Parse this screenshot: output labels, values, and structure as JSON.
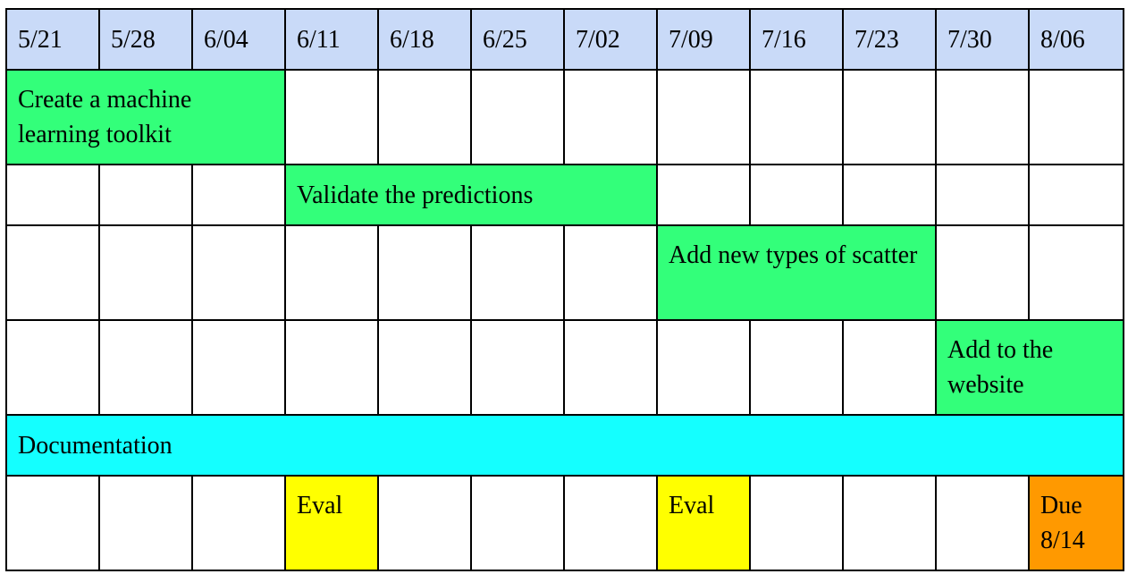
{
  "colors": {
    "header": "#c9daf8",
    "task": "#33ff7a",
    "documentation": "#14ffff",
    "eval": "#ffff00",
    "due": "#ff9900"
  },
  "weeks": [
    "5/21",
    "5/28",
    "6/04",
    "6/11",
    "6/18",
    "6/25",
    "7/02",
    "7/09",
    "7/16",
    "7/23",
    "7/30",
    "8/06"
  ],
  "tasks": [
    {
      "label": "Create a machine learning toolkit",
      "start_week": "5/21",
      "end_week": "6/04",
      "color": "task"
    },
    {
      "label": "Validate the predictions",
      "start_week": "6/11",
      "end_week": "7/02",
      "color": "task"
    },
    {
      "label": "Add new types of scatter",
      "start_week": "7/09",
      "end_week": "7/23",
      "color": "task"
    },
    {
      "label": "Add to the website",
      "start_week": "7/30",
      "end_week": "8/06",
      "color": "task"
    },
    {
      "label": "Documentation",
      "start_week": "5/21",
      "end_week": "8/06",
      "color": "documentation"
    }
  ],
  "milestones": [
    {
      "label": "Eval",
      "week": "6/11",
      "color": "eval"
    },
    {
      "label": "Eval",
      "week": "7/09",
      "color": "eval"
    },
    {
      "label": "Due 8/14",
      "week": "8/06",
      "color": "due"
    }
  ]
}
